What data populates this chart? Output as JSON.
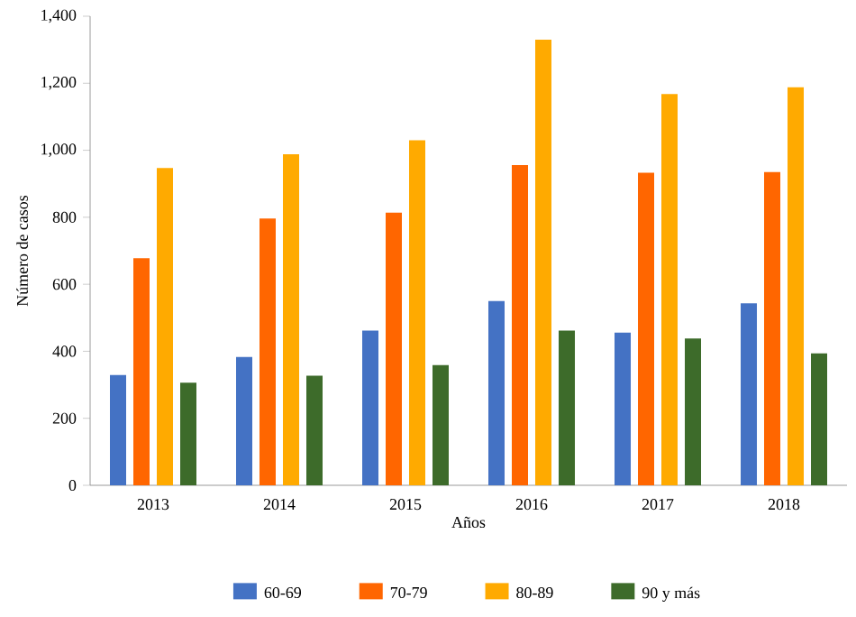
{
  "chart_data": {
    "type": "bar",
    "xlabel": "Años",
    "ylabel": "Número de casos",
    "categories": [
      "2013",
      "2014",
      "2015",
      "2016",
      "2017",
      "2018"
    ],
    "series": [
      {
        "name": "60-69",
        "color": "#4472c4",
        "values": [
          329,
          383,
          462,
          550,
          456,
          543
        ]
      },
      {
        "name": "70-79",
        "color": "#ff6600",
        "values": [
          678,
          796,
          814,
          956,
          933,
          935
        ]
      },
      {
        "name": "80-89",
        "color": "#ffaa00",
        "values": [
          947,
          988,
          1030,
          1330,
          1168,
          1188
        ]
      },
      {
        "name": "90 y más",
        "color": "#3d6b2a",
        "values": [
          306,
          327,
          359,
          462,
          438,
          394
        ]
      }
    ],
    "ylim": [
      0,
      1400
    ],
    "yticks": [
      0,
      200,
      400,
      600,
      800,
      {
        "value": 1000,
        "label": "1,000"
      },
      {
        "value": 1200,
        "label": "1,200"
      },
      {
        "value": 1400,
        "label": "1,400"
      }
    ],
    "legend": "bottom"
  }
}
